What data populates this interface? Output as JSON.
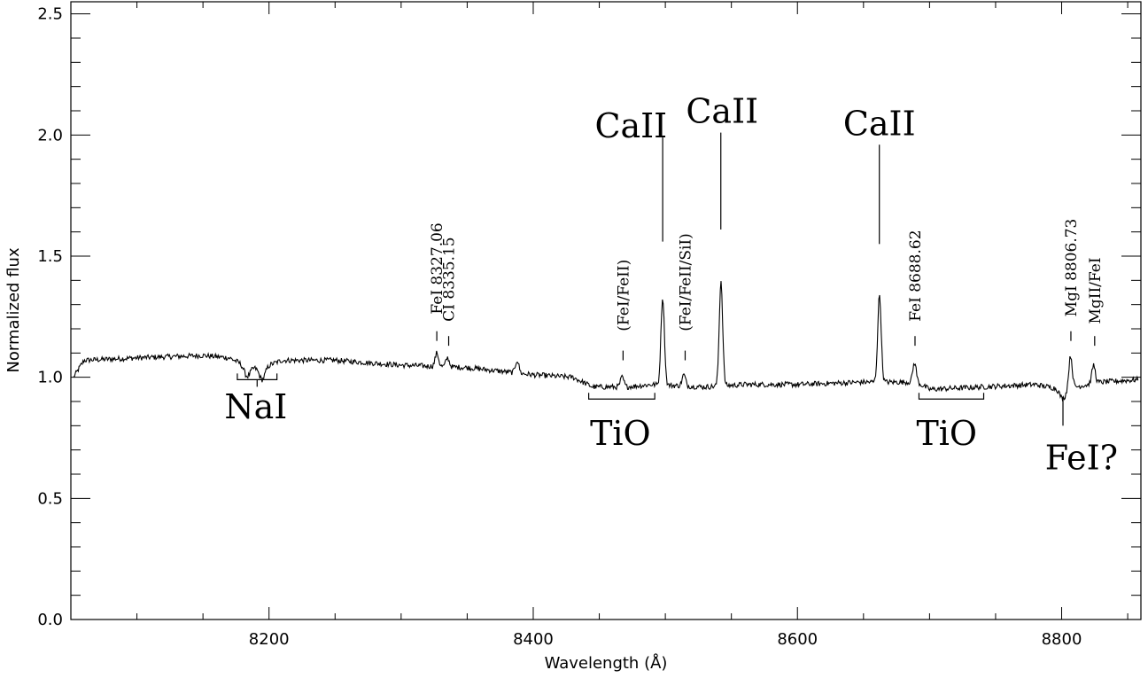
{
  "chart_data": {
    "type": "line",
    "xlabel": "Wavelength (Å)",
    "ylabel": "Normalized flux",
    "xlim": [
      8050,
      8860
    ],
    "ylim": [
      0.0,
      2.55
    ],
    "x_ticks": [
      8200,
      8400,
      8600,
      8800
    ],
    "x_tick_labels": [
      "8200",
      "8400",
      "8600",
      "8800"
    ],
    "y_ticks": [
      0.0,
      0.5,
      1.0,
      1.5,
      2.0,
      2.5
    ],
    "y_tick_labels": [
      "0.0",
      "0.5",
      "1.0",
      "1.5",
      "2.0",
      "2.5"
    ],
    "grid": false,
    "continuum_points": [
      {
        "x": 8052,
        "y": 1.0
      },
      {
        "x": 8060,
        "y": 1.07
      },
      {
        "x": 8100,
        "y": 1.08
      },
      {
        "x": 8150,
        "y": 1.09
      },
      {
        "x": 8170,
        "y": 1.08
      },
      {
        "x": 8185,
        "y": 1.04
      },
      {
        "x": 8195,
        "y": 1.04
      },
      {
        "x": 8210,
        "y": 1.07
      },
      {
        "x": 8250,
        "y": 1.07
      },
      {
        "x": 8300,
        "y": 1.05
      },
      {
        "x": 8350,
        "y": 1.04
      },
      {
        "x": 8400,
        "y": 1.01
      },
      {
        "x": 8430,
        "y": 1.0
      },
      {
        "x": 8445,
        "y": 0.96
      },
      {
        "x": 8470,
        "y": 0.96
      },
      {
        "x": 8490,
        "y": 0.97
      },
      {
        "x": 8530,
        "y": 0.96
      },
      {
        "x": 8560,
        "y": 0.97
      },
      {
        "x": 8600,
        "y": 0.97
      },
      {
        "x": 8650,
        "y": 0.98
      },
      {
        "x": 8690,
        "y": 0.98
      },
      {
        "x": 8700,
        "y": 0.95
      },
      {
        "x": 8740,
        "y": 0.96
      },
      {
        "x": 8780,
        "y": 0.97
      },
      {
        "x": 8800,
        "y": 0.95
      },
      {
        "x": 8830,
        "y": 0.98
      },
      {
        "x": 8858,
        "y": 0.99
      }
    ],
    "emission_lines": [
      {
        "x": 8327.06,
        "peak": 1.1
      },
      {
        "x": 8335.15,
        "peak": 1.08
      },
      {
        "x": 8387.8,
        "peak": 1.07
      },
      {
        "x": 8467.3,
        "peak": 1.0
      },
      {
        "x": 8498.0,
        "peak": 1.33
      },
      {
        "x": 8514.0,
        "peak": 1.01
      },
      {
        "x": 8542.1,
        "peak": 1.4
      },
      {
        "x": 8662.1,
        "peak": 1.34
      },
      {
        "x": 8688.62,
        "peak": 1.06
      },
      {
        "x": 8806.73,
        "peak": 1.09
      },
      {
        "x": 8824.2,
        "peak": 1.05
      }
    ],
    "absorption_lines": [
      {
        "x": 8183.3,
        "depth": 0.04
      },
      {
        "x": 8194.8,
        "depth": 0.05
      },
      {
        "x": 8801.0,
        "depth": 0.04
      }
    ],
    "annotations": [
      {
        "text": "NaI",
        "x": 8190,
        "y": 0.83,
        "size": "big",
        "rotate": false,
        "bracket": [
          8176,
          8206,
          0.99
        ]
      },
      {
        "text": "TiO",
        "x": 8466,
        "y": 0.72,
        "size": "big",
        "rotate": false,
        "bracket": [
          8442,
          8492,
          0.91
        ]
      },
      {
        "text": "TiO",
        "x": 8713,
        "y": 0.72,
        "size": "big",
        "rotate": false,
        "bracket": [
          8692,
          8741,
          0.91
        ]
      },
      {
        "text": "FeI?",
        "x": 8815,
        "y": 0.62,
        "size": "big",
        "rotate": false,
        "tick": [
          8801,
          0.8,
          0.92
        ]
      },
      {
        "text": "CaII",
        "x": 8474,
        "y": 1.99,
        "size": "big",
        "rotate": false,
        "tick": [
          8498,
          1.56,
          1.99
        ]
      },
      {
        "text": "CaII",
        "x": 8543,
        "y": 2.05,
        "size": "big",
        "rotate": false,
        "tick": [
          8542,
          1.61,
          2.01
        ]
      },
      {
        "text": "CaII",
        "x": 8662,
        "y": 2.0,
        "size": "big",
        "rotate": false,
        "tick": [
          8662,
          1.55,
          1.96
        ]
      },
      {
        "text": "FeI 8327.06",
        "x": 8327,
        "y": 1.26,
        "size": "small",
        "rotate": true,
        "tick": [
          8327,
          1.15,
          1.19
        ]
      },
      {
        "text": "CI 8335.15",
        "x": 8336,
        "y": 1.23,
        "size": "small",
        "rotate": true,
        "tick": [
          8336,
          1.13,
          1.17
        ]
      },
      {
        "text": "(FeI/FeII)",
        "x": 8468,
        "y": 1.19,
        "size": "small",
        "rotate": true,
        "tick": [
          8468,
          1.07,
          1.11
        ]
      },
      {
        "text": "(FeI/FeII/SiI)",
        "x": 8515,
        "y": 1.19,
        "size": "small",
        "rotate": true,
        "tick": [
          8515,
          1.07,
          1.11
        ]
      },
      {
        "text": "FeI 8688.62",
        "x": 8689,
        "y": 1.23,
        "size": "small",
        "rotate": true,
        "tick": [
          8689,
          1.13,
          1.17
        ]
      },
      {
        "text": "MgI 8806.73",
        "x": 8807,
        "y": 1.25,
        "size": "small",
        "rotate": true,
        "tick": [
          8807,
          1.15,
          1.19
        ]
      },
      {
        "text": "MgII/FeI",
        "x": 8825,
        "y": 1.22,
        "size": "small",
        "rotate": true,
        "tick": [
          8825,
          1.13,
          1.17
        ]
      }
    ]
  }
}
